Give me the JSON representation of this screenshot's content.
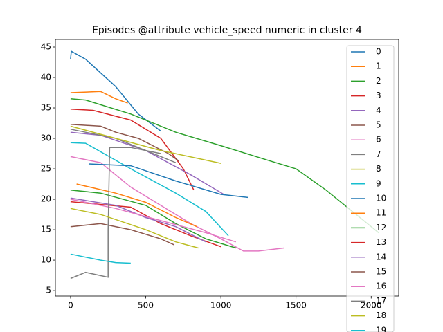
{
  "chart_data": {
    "type": "line",
    "title": "Episodes @attribute vehicle_speed numeric in cluster 4",
    "xlim": [
      -101,
      2183
    ],
    "ylim": [
      4.1,
      46.25
    ],
    "xticks": [
      0,
      500,
      1000,
      1500,
      2000
    ],
    "yticks": [
      5,
      10,
      15,
      20,
      25,
      30,
      35,
      40,
      45
    ],
    "legend": "upper right",
    "series": [
      {
        "name": "0",
        "color": "#1f77b4",
        "x": [
          0,
          5,
          100,
          300,
          450,
          600
        ],
        "values": [
          43,
          44.3,
          43,
          38.5,
          34,
          31.2
        ]
      },
      {
        "name": "1",
        "color": "#ff7f0e",
        "x": [
          0,
          200,
          300,
          380
        ],
        "values": [
          37.5,
          37.7,
          36.5,
          35.8
        ]
      },
      {
        "name": "2",
        "color": "#2ca02c",
        "x": [
          0,
          100,
          400,
          700,
          1000,
          1300,
          1500,
          1700,
          1900,
          2000,
          2050
        ],
        "values": [
          36.5,
          36.3,
          34,
          31,
          28.8,
          26.5,
          25,
          21.5,
          17.5,
          15.5,
          14.5
        ]
      },
      {
        "name": "3",
        "color": "#d62728",
        "x": [
          0,
          150,
          400,
          600,
          750,
          820
        ],
        "values": [
          34.8,
          34.6,
          33,
          30,
          25,
          21.5
        ]
      },
      {
        "name": "4",
        "color": "#9467bd",
        "x": [
          0,
          200,
          500,
          800,
          1020
        ],
        "values": [
          31,
          30.5,
          28,
          24,
          20.8
        ]
      },
      {
        "name": "5",
        "color": "#8c564b",
        "x": [
          0,
          200,
          300,
          450,
          650,
          720
        ],
        "values": [
          32.3,
          32,
          31,
          30,
          27.5,
          26.3
        ]
      },
      {
        "name": "6",
        "color": "#e377c2",
        "x": [
          0,
          200,
          400,
          600,
          800,
          1000,
          1150,
          1250,
          1420
        ],
        "values": [
          27,
          26,
          22,
          19,
          16,
          13.5,
          11.5,
          11.5,
          12
        ]
      },
      {
        "name": "7",
        "color": "#7f7f7f",
        "x": [
          0,
          100,
          300,
          500,
          700
        ],
        "values": [
          31.5,
          31,
          30,
          28,
          26
        ]
      },
      {
        "name": "8",
        "color": "#bcbd22",
        "x": [
          0,
          300,
          600,
          1000
        ],
        "values": [
          32,
          30,
          28,
          25.9
        ]
      },
      {
        "name": "9",
        "color": "#17becf",
        "x": [
          0,
          100,
          400,
          700,
          900,
          1050
        ],
        "values": [
          29.3,
          29.2,
          25,
          21,
          18,
          14
        ]
      },
      {
        "name": "10",
        "color": "#1f77b4",
        "x": [
          120,
          400,
          700,
          1000,
          1180
        ],
        "values": [
          25.8,
          25.5,
          23,
          20.8,
          20.3
        ]
      },
      {
        "name": "11",
        "color": "#ff7f0e",
        "x": [
          40,
          300,
          500,
          700,
          840
        ],
        "values": [
          22.5,
          21,
          19.5,
          17,
          15.5
        ]
      },
      {
        "name": "12",
        "color": "#2ca02c",
        "x": [
          0,
          200,
          500,
          700,
          900,
          1100
        ],
        "values": [
          21.5,
          21,
          19,
          16,
          13.5,
          12
        ]
      },
      {
        "name": "13",
        "color": "#d62728",
        "x": [
          0,
          400,
          600,
          800,
          1000
        ],
        "values": [
          19.6,
          18.7,
          16,
          14,
          12.2
        ]
      },
      {
        "name": "14",
        "color": "#9467bd",
        "x": [
          0,
          300,
          500,
          700,
          900
        ],
        "values": [
          20.2,
          19,
          17,
          15.5,
          13
        ]
      },
      {
        "name": "15",
        "color": "#8c564b",
        "x": [
          0,
          200,
          400,
          600,
          690
        ],
        "values": [
          15.5,
          16,
          15,
          13.5,
          12.5
        ]
      },
      {
        "name": "16",
        "color": "#e377c2",
        "x": [
          0,
          300,
          600,
          900,
          1100
        ],
        "values": [
          20,
          18.5,
          16.5,
          14.5,
          13
        ]
      },
      {
        "name": "17",
        "color": "#7f7f7f",
        "x": [
          0,
          100,
          250,
          250,
          260,
          400,
          600
        ],
        "values": [
          7,
          8,
          7.2,
          15,
          28.5,
          28.5,
          27.5
        ]
      },
      {
        "name": "18",
        "color": "#bcbd22",
        "x": [
          0,
          200,
          500,
          700,
          850
        ],
        "values": [
          18.5,
          17.5,
          15,
          13,
          12
        ]
      },
      {
        "name": "19",
        "color": "#17becf",
        "x": [
          0,
          200,
          300,
          400
        ],
        "values": [
          11,
          10,
          9.6,
          9.5
        ]
      }
    ]
  }
}
